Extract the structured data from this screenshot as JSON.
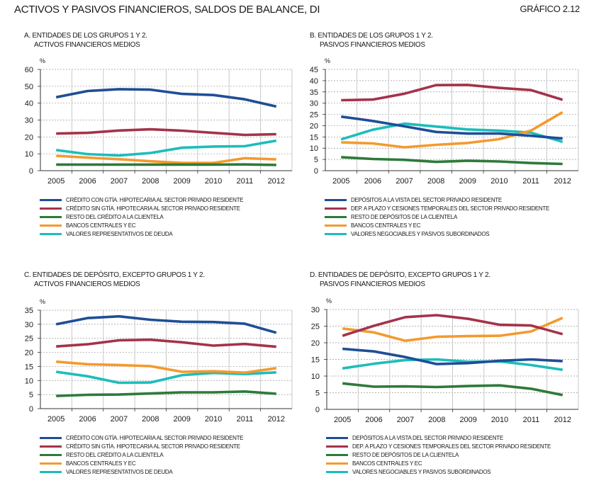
{
  "header": {
    "title": "ACTIVOS Y PASIVOS FINANCIEROS, SALDOS DE BALANCE, DI",
    "figure_number": "GRÁFICO 2.12"
  },
  "colors": {
    "blue": "#1f4e96",
    "red": "#a3334a",
    "green": "#2e7a3a",
    "orange": "#f39a2e",
    "cyan": "#1cbdbb"
  },
  "chart_data": [
    {
      "id": "A",
      "type": "line",
      "title_line1": "A.  ENTIDADES DE LOS GRUPOS 1 Y 2.",
      "title_line2": "ACTIVOS FINANCIEROS MEDIOS",
      "ylabel": "%",
      "ylim": [
        0,
        60
      ],
      "yticks": [
        0,
        10,
        20,
        30,
        40,
        50,
        60
      ],
      "grid": true,
      "legend_placement": "bottom",
      "categories": [
        "2005",
        "2006",
        "2007",
        "2008",
        "2009",
        "2010",
        "2011",
        "2012"
      ],
      "series": [
        {
          "name": "CRÉDITO CON GTÍA. HIPOTECARIA AL SECTOR PRIVADO RESIDENTE",
          "color": "blue",
          "values": [
            43.5,
            47.2,
            48.3,
            48.0,
            45.5,
            44.8,
            42.3,
            38.0
          ]
        },
        {
          "name": "CRÉDITO SIN GTÍA. HIPOTECARIA AL SECTOR PRIVADO RESIDENTE",
          "color": "red",
          "values": [
            22.0,
            22.4,
            23.8,
            24.5,
            23.7,
            22.4,
            21.2,
            21.6
          ]
        },
        {
          "name": "RESTO DEL CRÉDITO A LA CLIENTELA",
          "color": "green",
          "values": [
            3.6,
            3.6,
            3.6,
            3.6,
            3.6,
            3.6,
            3.7,
            3.4
          ]
        },
        {
          "name": "BANCOS CENTRALES Y EC",
          "color": "orange",
          "values": [
            8.8,
            7.7,
            6.8,
            5.6,
            4.6,
            4.6,
            7.4,
            6.7
          ]
        },
        {
          "name": "VALORES REPRESENTATIVOS DE DEUDA",
          "color": "cyan",
          "values": [
            12.2,
            9.8,
            9.0,
            10.5,
            13.6,
            14.3,
            14.5,
            17.8
          ]
        }
      ]
    },
    {
      "id": "B",
      "type": "line",
      "title_line1": "B.  ENTIDADES DE LOS GRUPOS 1 Y 2.",
      "title_line2": "PASIVOS FINANCIEROS MEDIOS",
      "ylabel": "%",
      "ylim": [
        0,
        45
      ],
      "yticks": [
        0,
        5,
        10,
        15,
        20,
        25,
        30,
        35,
        40,
        45
      ],
      "grid": true,
      "legend_placement": "bottom",
      "categories": [
        "2005",
        "2006",
        "2007",
        "2008",
        "2009",
        "2010",
        "2011",
        "2012"
      ],
      "series": [
        {
          "name": "DEPÓSITOS A LA VISTA DEL SECTOR PRIVADO RESIDENTE",
          "color": "blue",
          "values": [
            24.0,
            22.1,
            19.7,
            17.2,
            16.5,
            16.5,
            15.5,
            14.3
          ]
        },
        {
          "name": "DEP. A PLAZO Y CESIONES TEMPORALES DEL SECTOR PRIVADO RESIDENTE",
          "color": "red",
          "values": [
            31.3,
            31.6,
            34.2,
            38.0,
            38.1,
            36.8,
            35.8,
            31.5
          ]
        },
        {
          "name": "RESTO DE DEPÓSITOS DE LA CLIENTELA",
          "color": "green",
          "values": [
            6.0,
            5.2,
            4.8,
            3.9,
            4.4,
            4.1,
            3.4,
            3.0
          ]
        },
        {
          "name": "BANCOS CENTRALES Y EC",
          "color": "orange",
          "values": [
            12.6,
            12.1,
            10.4,
            11.5,
            12.3,
            14.0,
            17.8,
            26.0
          ]
        },
        {
          "name": "VALORES NEGOCIABLES Y PASIVOS SUBORDINADOS",
          "color": "cyan",
          "values": [
            13.9,
            18.2,
            20.9,
            19.6,
            18.3,
            17.8,
            16.9,
            12.8
          ]
        }
      ]
    },
    {
      "id": "C",
      "type": "line",
      "title_line1": "C.  ENTIDADES DE DEPÓSITO, EXCEPTO GRUPOS 1 Y 2.",
      "title_line2": "ACTIVOS FINANCIEROS MEDIOS",
      "ylabel": "%",
      "ylim": [
        0,
        35
      ],
      "yticks": [
        0,
        5,
        10,
        15,
        20,
        25,
        30,
        35
      ],
      "grid": true,
      "legend_placement": "bottom",
      "categories": [
        "2005",
        "2006",
        "2007",
        "2008",
        "2009",
        "2010",
        "2011",
        "2012"
      ],
      "series": [
        {
          "name": "CRÉDITO CON GTÍA. HIPOTECARIA AL SECTOR PRIVADO RESIDENTE",
          "color": "blue",
          "values": [
            30.0,
            32.2,
            32.8,
            31.6,
            30.9,
            30.8,
            30.2,
            27.0
          ]
        },
        {
          "name": "CRÉDITO SIN GTÍA. HIPOTECARIA AL SECTOR PRIVADO RESIDENTE",
          "color": "red",
          "values": [
            22.1,
            22.9,
            24.3,
            24.5,
            23.6,
            22.4,
            23.0,
            22.0
          ]
        },
        {
          "name": "RESTO DEL CRÉDITO A LA CLIENTELA",
          "color": "green",
          "values": [
            4.5,
            4.9,
            5.0,
            5.4,
            5.8,
            5.8,
            6.1,
            5.3
          ]
        },
        {
          "name": "BANCOS CENTRALES Y EC",
          "color": "orange",
          "values": [
            16.7,
            15.8,
            15.5,
            15.1,
            13.1,
            13.3,
            12.8,
            14.4
          ]
        },
        {
          "name": "VALORES REPRESENTATIVOS DE DEUDA",
          "color": "cyan",
          "values": [
            13.1,
            11.5,
            9.2,
            9.3,
            11.9,
            12.7,
            12.3,
            12.9
          ]
        }
      ]
    },
    {
      "id": "D",
      "type": "line",
      "title_line1": "D.  ENTIDADES DE DEPÓSITO, EXCEPTO GRUPOS 1 Y 2.",
      "title_line2": "PASIVOS FINANCIEROS MEDIOS",
      "ylabel": "%",
      "ylim": [
        0,
        30
      ],
      "yticks": [
        0,
        5,
        10,
        15,
        20,
        25,
        30
      ],
      "grid": true,
      "legend_placement": "bottom",
      "categories": [
        "2005",
        "2006",
        "2007",
        "2008",
        "2009",
        "2010",
        "2011",
        "2012"
      ],
      "series": [
        {
          "name": "DEPÓSITOS A LA VISTA DEL SECTOR PRIVADO RESIDENTE",
          "color": "blue",
          "values": [
            18.2,
            17.4,
            15.7,
            13.6,
            13.9,
            14.6,
            15.0,
            14.5
          ]
        },
        {
          "name": "DEP. A PLAZO Y CESIONES TEMPORALES DEL SECTOR PRIVADO RESIDENTE",
          "color": "red",
          "values": [
            22.1,
            25.1,
            27.7,
            28.3,
            27.2,
            25.4,
            25.2,
            22.6
          ]
        },
        {
          "name": "RESTO DE DEPÓSITOS DE LA CLIENTELA",
          "color": "green",
          "values": [
            7.8,
            6.8,
            6.9,
            6.7,
            7.0,
            7.2,
            6.2,
            4.3
          ]
        },
        {
          "name": "BANCOS CENTRALES Y EC",
          "color": "orange",
          "values": [
            24.3,
            23.1,
            20.6,
            21.8,
            22.0,
            22.1,
            23.4,
            27.5
          ]
        },
        {
          "name": "VALORES NEGOCIABLES Y PASIVOS SUBORDINADOS",
          "color": "cyan",
          "values": [
            12.3,
            13.7,
            14.8,
            15.0,
            14.3,
            14.4,
            13.3,
            11.9
          ]
        }
      ]
    }
  ]
}
